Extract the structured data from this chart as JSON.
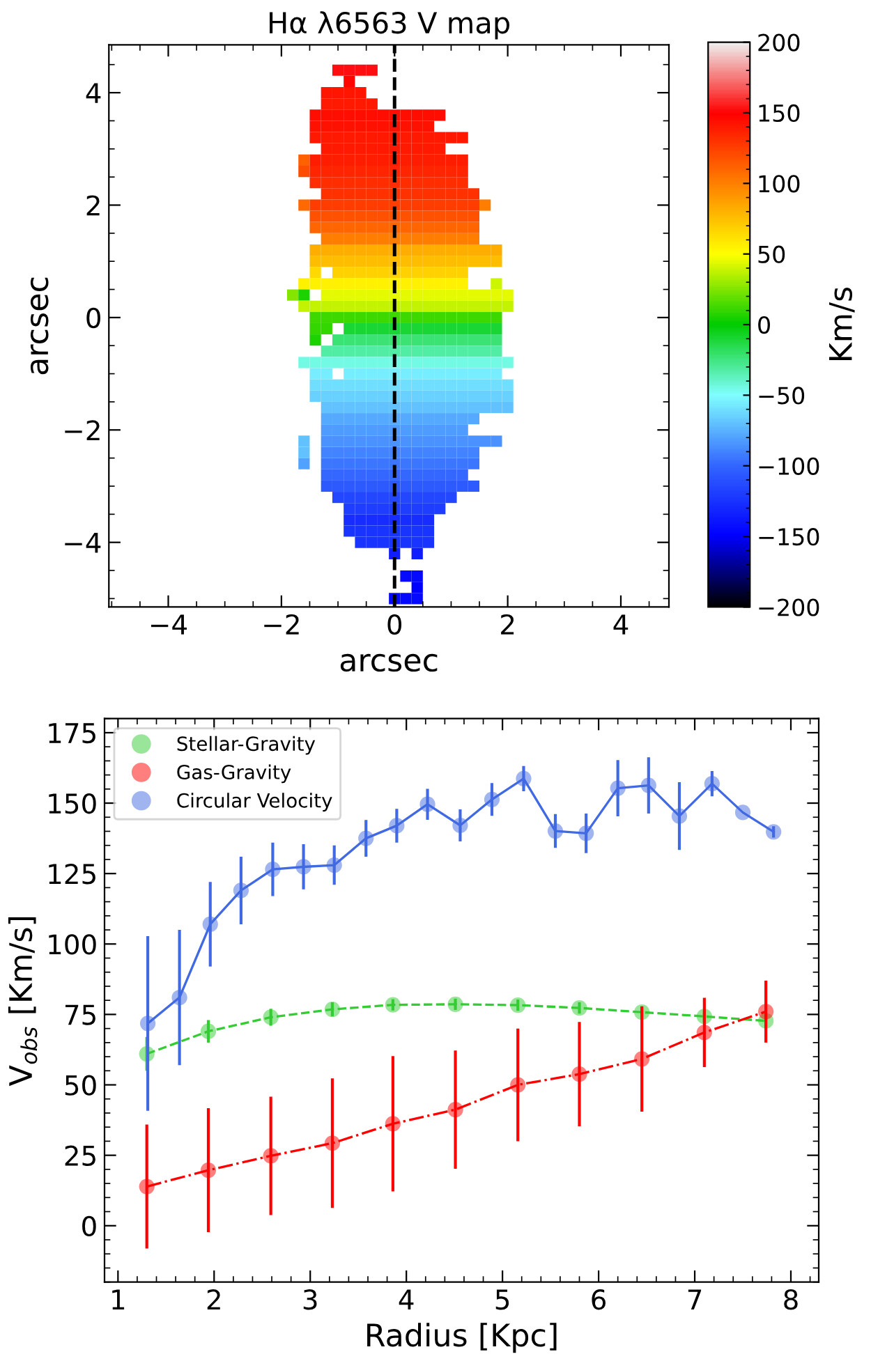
{
  "chart_data": [
    {
      "type": "heatmap",
      "title": "Hα λ6563 V map",
      "xlabel": "arcsec",
      "ylabel": "arcsec",
      "clabel": "Km/s",
      "x": [
        -1.8,
        -1.6,
        -1.4,
        -1.2,
        -1.0,
        -0.8,
        -0.6,
        -0.4,
        -0.2,
        0.0,
        0.2,
        0.4,
        0.6,
        0.8,
        1.0,
        1.2,
        1.4,
        1.6,
        1.8,
        2.0
      ],
      "y": [
        4.4,
        4.2,
        4.0,
        3.8,
        3.6,
        3.4,
        3.2,
        3.0,
        2.8,
        2.6,
        2.4,
        2.2,
        2.0,
        1.8,
        1.6,
        1.4,
        1.2,
        1.0,
        0.8,
        0.6,
        0.4,
        0.2,
        0.0,
        -0.2,
        -0.4,
        -0.6,
        -0.8,
        -1.0,
        -1.2,
        -1.4,
        -1.6,
        -1.8,
        -2.0,
        -2.2,
        -2.4,
        -2.6,
        -2.8,
        -3.0,
        -3.2,
        -3.4,
        -3.6,
        -3.8,
        -4.0,
        -4.2,
        -4.6,
        -4.8,
        -5.0
      ],
      "xlim": [
        -5.05,
        4.85
      ],
      "ylim": [
        -5.15,
        4.85
      ],
      "xticks": [
        {
          "value": -4,
          "label": "−4"
        },
        {
          "value": -2,
          "label": "−2"
        },
        0,
        2,
        4
      ],
      "yticks": [
        {
          "value": -4,
          "label": "−4"
        },
        {
          "value": -2,
          "label": "−2"
        },
        0,
        2,
        4
      ],
      "clim": [
        -200,
        200
      ],
      "cticks": [
        {
          "value": -200,
          "label": "−200"
        },
        {
          "value": -150,
          "label": "−150"
        },
        {
          "value": -100,
          "label": "−100"
        },
        {
          "value": -50,
          "label": "−50"
        },
        0,
        50,
        100,
        150,
        200
      ],
      "ref_lines": [
        {
          "axis": "x",
          "value": 0,
          "color": "#000000",
          "line_style": "dashed"
        }
      ],
      "cells": [
        [
          null,
          null,
          null,
          null,
          152,
          152,
          152,
          152,
          null,
          null,
          null,
          null,
          null,
          null,
          null,
          null,
          null,
          null,
          null,
          null
        ],
        [
          null,
          null,
          null,
          null,
          null,
          148,
          null,
          null,
          null,
          null,
          null,
          null,
          null,
          null,
          null,
          null,
          null,
          null,
          null,
          null
        ],
        [
          null,
          null,
          null,
          142,
          142,
          142,
          142,
          null,
          null,
          null,
          null,
          null,
          null,
          null,
          null,
          null,
          null,
          null,
          null,
          null
        ],
        [
          null,
          null,
          null,
          140,
          140,
          140,
          140,
          140,
          null,
          null,
          null,
          null,
          null,
          null,
          null,
          null,
          null,
          null,
          null,
          null
        ],
        [
          null,
          null,
          145,
          145,
          145,
          145,
          145,
          145,
          145,
          145,
          145,
          145,
          145,
          145,
          null,
          null,
          null,
          null,
          null,
          null
        ],
        [
          null,
          null,
          143,
          143,
          143,
          143,
          143,
          143,
          143,
          143,
          143,
          143,
          143,
          null,
          null,
          null,
          null,
          null,
          null,
          null
        ],
        [
          null,
          null,
          140,
          140,
          140,
          140,
          140,
          140,
          140,
          140,
          140,
          140,
          140,
          140,
          140,
          140,
          null,
          null,
          null,
          null
        ],
        [
          null,
          null,
          null,
          140,
          140,
          140,
          140,
          140,
          140,
          140,
          140,
          140,
          140,
          140,
          null,
          null,
          null,
          null,
          null,
          null
        ],
        [
          null,
          112,
          138,
          138,
          138,
          138,
          138,
          138,
          138,
          138,
          138,
          138,
          138,
          138,
          138,
          138,
          null,
          null,
          null,
          null
        ],
        [
          null,
          120,
          135,
          135,
          135,
          135,
          135,
          135,
          135,
          135,
          135,
          135,
          135,
          135,
          135,
          135,
          null,
          null,
          null,
          null
        ],
        [
          null,
          null,
          132,
          132,
          132,
          132,
          132,
          132,
          132,
          132,
          132,
          132,
          132,
          132,
          132,
          132,
          null,
          null,
          null,
          null
        ],
        [
          null,
          null,
          null,
          130,
          130,
          130,
          130,
          130,
          130,
          130,
          130,
          130,
          130,
          130,
          130,
          130,
          130,
          null,
          null,
          null
        ],
        [
          null,
          108,
          125,
          125,
          125,
          125,
          125,
          125,
          125,
          125,
          125,
          125,
          125,
          125,
          125,
          125,
          125,
          100,
          null,
          null
        ],
        [
          null,
          null,
          118,
          118,
          118,
          118,
          118,
          118,
          118,
          118,
          118,
          118,
          118,
          118,
          118,
          118,
          118,
          null,
          null,
          null
        ],
        [
          null,
          null,
          110,
          110,
          110,
          110,
          110,
          110,
          110,
          110,
          110,
          110,
          110,
          110,
          110,
          110,
          110,
          null,
          null,
          null
        ],
        [
          null,
          null,
          null,
          100,
          100,
          100,
          100,
          100,
          100,
          100,
          100,
          100,
          100,
          100,
          100,
          100,
          100,
          null,
          null,
          null
        ],
        [
          null,
          null,
          82,
          82,
          82,
          82,
          82,
          82,
          82,
          82,
          82,
          82,
          82,
          82,
          82,
          82,
          82,
          82,
          82,
          null
        ],
        [
          null,
          null,
          75,
          75,
          75,
          75,
          75,
          75,
          75,
          75,
          75,
          75,
          75,
          75,
          75,
          75,
          75,
          75,
          75,
          null
        ],
        [
          null,
          null,
          65,
          null,
          68,
          68,
          68,
          68,
          68,
          68,
          68,
          68,
          68,
          68,
          68,
          68,
          null,
          null,
          null,
          null
        ],
        [
          null,
          55,
          55,
          55,
          55,
          55,
          55,
          55,
          55,
          55,
          55,
          55,
          55,
          55,
          55,
          55,
          null,
          null,
          40,
          null
        ],
        [
          25,
          5,
          null,
          45,
          45,
          45,
          45,
          45,
          45,
          45,
          45,
          45,
          45,
          45,
          45,
          45,
          45,
          45,
          45,
          45
        ],
        [
          null,
          38,
          38,
          38,
          38,
          38,
          38,
          38,
          38,
          38,
          38,
          38,
          38,
          38,
          38,
          38,
          38,
          38,
          38,
          38
        ],
        [
          null,
          null,
          12,
          12,
          12,
          12,
          12,
          12,
          12,
          12,
          12,
          12,
          12,
          12,
          12,
          12,
          12,
          12,
          12,
          null
        ],
        [
          null,
          null,
          10,
          10,
          null,
          -10,
          -10,
          -10,
          -10,
          -10,
          -10,
          -10,
          -10,
          -10,
          -10,
          -10,
          -10,
          -10,
          -10,
          null
        ],
        [
          null,
          null,
          5,
          null,
          -22,
          -22,
          -22,
          -22,
          -22,
          -22,
          -22,
          -22,
          -22,
          -22,
          -22,
          -22,
          -22,
          -22,
          -22,
          null
        ],
        [
          null,
          null,
          null,
          -32,
          -32,
          -32,
          -32,
          -32,
          -32,
          -32,
          -32,
          -32,
          -32,
          -32,
          -32,
          -32,
          -32,
          -32,
          -32,
          null
        ],
        [
          null,
          -45,
          -45,
          -45,
          -45,
          -45,
          -45,
          -45,
          -45,
          -45,
          -45,
          -45,
          -45,
          -45,
          -45,
          -45,
          -45,
          -45,
          -45,
          -45
        ],
        [
          null,
          null,
          -55,
          -55,
          null,
          -55,
          -55,
          -55,
          -55,
          -55,
          -55,
          -55,
          -55,
          -55,
          -55,
          -55,
          -55,
          -55,
          -55,
          null
        ],
        [
          null,
          null,
          -60,
          -60,
          -60,
          -60,
          -60,
          -60,
          -60,
          -60,
          -60,
          -60,
          -60,
          -60,
          -60,
          -60,
          -60,
          -60,
          -60,
          -60
        ],
        [
          null,
          null,
          -65,
          -65,
          -65,
          -65,
          -65,
          -65,
          -65,
          -65,
          -65,
          -65,
          -65,
          -65,
          -65,
          -65,
          -65,
          -65,
          -65,
          -65
        ],
        [
          null,
          null,
          null,
          -70,
          -70,
          -70,
          -70,
          -70,
          -70,
          -70,
          -70,
          -70,
          -70,
          -70,
          -70,
          -70,
          -70,
          -70,
          -70,
          -70
        ],
        [
          null,
          null,
          null,
          -78,
          -78,
          -78,
          -78,
          -78,
          -78,
          -78,
          -78,
          -78,
          -78,
          -78,
          -78,
          -78,
          -78,
          null,
          null,
          null
        ],
        [
          null,
          null,
          null,
          -82,
          -82,
          -82,
          -82,
          -82,
          -82,
          -82,
          -82,
          -82,
          -82,
          -82,
          -82,
          -82,
          null,
          null,
          null,
          null
        ],
        [
          null,
          -70,
          null,
          -85,
          -85,
          -85,
          -85,
          -85,
          -85,
          -85,
          -85,
          -85,
          -85,
          -85,
          -85,
          -85,
          -85,
          -85,
          -85,
          null
        ],
        [
          null,
          -70,
          null,
          -90,
          -90,
          -90,
          -90,
          -90,
          -90,
          -90,
          -90,
          -90,
          -90,
          -90,
          -90,
          -90,
          -90,
          null,
          null,
          null
        ],
        [
          null,
          -80,
          null,
          -95,
          -95,
          -95,
          -95,
          -95,
          -95,
          -95,
          -95,
          -95,
          -95,
          -95,
          -95,
          -95,
          -95,
          null,
          null,
          null
        ],
        [
          null,
          null,
          null,
          -100,
          -100,
          -100,
          -100,
          -100,
          -100,
          -100,
          -100,
          -100,
          -100,
          -100,
          -100,
          -100,
          null,
          null,
          null,
          null
        ],
        [
          null,
          null,
          null,
          -105,
          -105,
          -105,
          -105,
          -105,
          -105,
          -105,
          -105,
          -105,
          -105,
          -105,
          -105,
          -105,
          -105,
          null,
          null,
          null
        ],
        [
          null,
          null,
          null,
          null,
          -115,
          -115,
          -115,
          -115,
          -115,
          -115,
          -115,
          -115,
          -115,
          -115,
          -115,
          null,
          null,
          null,
          null,
          null
        ],
        [
          null,
          null,
          null,
          null,
          null,
          -120,
          -120,
          -120,
          -120,
          -120,
          -120,
          -120,
          -120,
          -120,
          null,
          null,
          null,
          null,
          null,
          null
        ],
        [
          null,
          null,
          null,
          null,
          null,
          -128,
          -128,
          -128,
          -128,
          -128,
          -128,
          -128,
          -128,
          null,
          null,
          null,
          null,
          null,
          null,
          null
        ],
        [
          null,
          null,
          null,
          null,
          null,
          -125,
          -125,
          -125,
          -125,
          -125,
          -125,
          -125,
          -125,
          null,
          null,
          null,
          null,
          null,
          null,
          null
        ],
        [
          null,
          null,
          null,
          null,
          null,
          null,
          -125,
          -125,
          -125,
          -125,
          -125,
          -125,
          -125,
          null,
          null,
          null,
          null,
          null,
          null,
          null
        ],
        [
          null,
          null,
          null,
          null,
          null,
          null,
          null,
          null,
          null,
          -135,
          null,
          -135,
          null,
          null,
          null,
          null,
          null,
          null,
          null,
          null
        ],
        [
          null,
          null,
          null,
          null,
          null,
          null,
          null,
          null,
          null,
          null,
          -145,
          -145,
          null,
          null,
          null,
          null,
          null,
          null,
          null,
          null
        ],
        [
          null,
          null,
          null,
          null,
          null,
          null,
          null,
          null,
          null,
          null,
          null,
          -150,
          null,
          null,
          null,
          null,
          null,
          null,
          null,
          null
        ],
        [
          null,
          null,
          null,
          null,
          null,
          null,
          null,
          null,
          null,
          -145,
          -145,
          -145,
          null,
          null,
          null,
          null,
          null,
          null,
          null,
          null
        ]
      ]
    },
    {
      "type": "line",
      "xlabel": "Radius [Kpc]",
      "ylabel": "V$_{obs}$ [Km/s]",
      "xlim": [
        0.86,
        8.29
      ],
      "ylim": [
        -20,
        180
      ],
      "xticks": [
        1,
        2,
        3,
        4,
        5,
        6,
        7,
        8
      ],
      "yticks": [
        0,
        25,
        50,
        75,
        100,
        125,
        150,
        175
      ],
      "legend": "top left",
      "marker": "circle",
      "series": [
        {
          "name": "Stellar-Gravity",
          "color": "#33cc33",
          "line_style": "dashed",
          "x": [
            1.3,
            1.94,
            2.59,
            3.23,
            3.86,
            4.51,
            5.16,
            5.8,
            6.45,
            7.1,
            7.74
          ],
          "values": [
            61,
            69,
            74,
            76.8,
            78.4,
            78.6,
            78.3,
            77.3,
            75.8,
            74.3,
            72.7
          ],
          "errors": [
            6,
            4,
            3,
            2.5,
            2,
            2,
            2,
            2,
            2,
            2,
            2
          ]
        },
        {
          "name": "Gas-Gravity",
          "color": "#ff0000",
          "line_style": "dashdot",
          "x": [
            1.3,
            1.94,
            2.59,
            3.23,
            3.86,
            4.51,
            5.16,
            5.8,
            6.45,
            7.1,
            7.74
          ],
          "values": [
            13.9,
            19.7,
            24.8,
            29.3,
            36.2,
            41.2,
            50,
            53.8,
            59.2,
            68.6,
            76
          ],
          "errors": [
            22,
            22,
            21,
            23,
            24,
            21,
            20,
            18.5,
            18.7,
            12.3,
            11
          ]
        },
        {
          "name": "Circular Velocity",
          "color": "#4169e1",
          "line_style": "solid",
          "x": [
            1.31,
            1.64,
            1.96,
            2.28,
            2.61,
            2.93,
            3.25,
            3.58,
            3.9,
            4.22,
            4.56,
            4.89,
            5.22,
            5.55,
            5.87,
            6.2,
            6.52,
            6.84,
            7.18,
            7.5,
            7.82
          ],
          "values": [
            71.8,
            81,
            107,
            119,
            126.5,
            127.4,
            128,
            137.5,
            142,
            149.6,
            142.1,
            151.3,
            158.7,
            140.1,
            139.3,
            155.3,
            156.3,
            145.4,
            156.9,
            146.7,
            139.8
          ],
          "errors": [
            31,
            24,
            15,
            12,
            9.5,
            8,
            7,
            6.5,
            6,
            5.5,
            5.7,
            5.8,
            4.5,
            6,
            7,
            10,
            10,
            12,
            4.5,
            null,
            2
          ]
        }
      ]
    }
  ]
}
